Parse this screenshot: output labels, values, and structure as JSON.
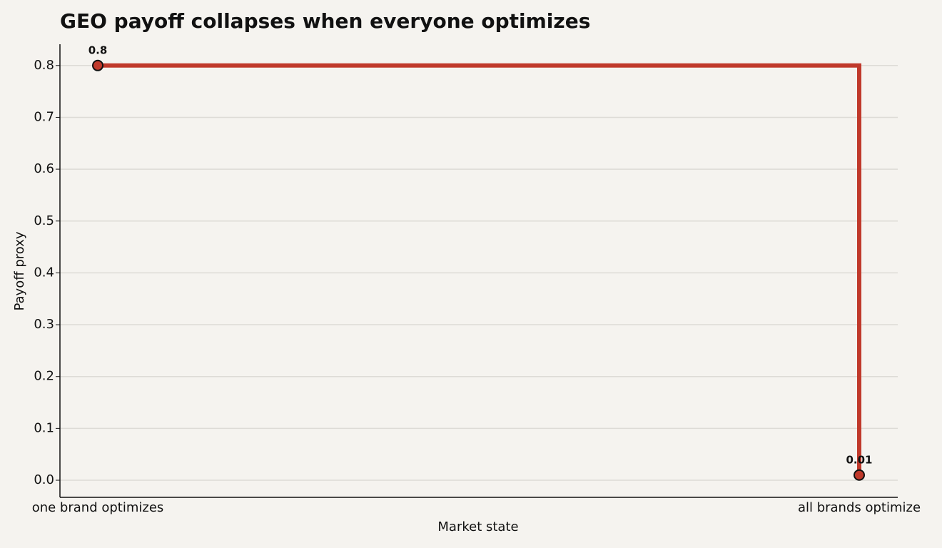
{
  "chart_data": {
    "type": "line",
    "step": "post",
    "title": "GEO payoff collapses when everyone optimizes",
    "x_label": "Market state",
    "y_label": "Payoff proxy",
    "categories": [
      "one brand optimizes",
      "all brands optimize"
    ],
    "values": [
      0.8,
      0.01
    ],
    "color": "#c0392b",
    "ylim": [
      -0.033,
      0.841
    ],
    "yticks": [
      {
        "value": 0,
        "label": "0.0"
      },
      0.1,
      0.2,
      0.3,
      0.4,
      0.5,
      0.6,
      0.7,
      0.8
    ],
    "grid": true
  }
}
